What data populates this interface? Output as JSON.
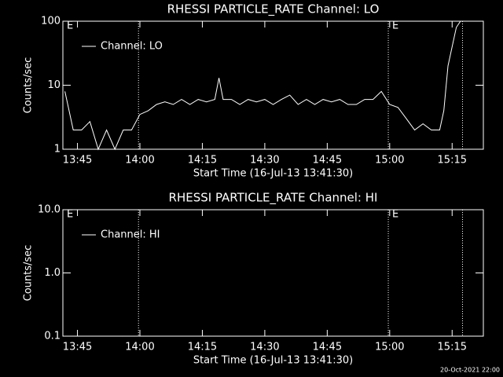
{
  "chart_data": [
    {
      "type": "line",
      "title": "RHESSI PARTICLE_RATE Channel: LO",
      "ylabel": "Counts/sec",
      "xlabel": "Start Time (16-Jul-13 13:41:30)",
      "log_y": true,
      "grid": false,
      "legend": "upper left",
      "xlim": [
        "13:41:30",
        "15:22:30"
      ],
      "xticks": [
        "13:45",
        "14:00",
        "14:15",
        "14:30",
        "14:45",
        "15:00",
        "15:15"
      ],
      "ylim": [
        1,
        100
      ],
      "yticks": [
        1,
        10,
        100
      ],
      "vlines": [
        "13:59:40",
        "14:59:40",
        "15:17:30"
      ],
      "annotations": [
        "E",
        "E"
      ],
      "series": [
        {
          "name": "Channel: LO",
          "color": "#ffffff",
          "x": [
            "13:42",
            "13:43",
            "13:44",
            "13:46",
            "13:48",
            "13:50",
            "13:52",
            "13:54",
            "13:56",
            "13:58",
            "14:00",
            "14:02",
            "14:04",
            "14:06",
            "14:08",
            "14:10",
            "14:12",
            "14:14",
            "14:16",
            "14:18",
            "14:19",
            "14:20",
            "14:22",
            "14:24",
            "14:26",
            "14:28",
            "14:30",
            "14:32",
            "14:34",
            "14:36",
            "14:38",
            "14:40",
            "14:42",
            "14:44",
            "14:46",
            "14:48",
            "14:50",
            "14:52",
            "14:54",
            "14:56",
            "14:58",
            "15:00",
            "15:02",
            "15:04",
            "15:06",
            "15:08",
            "15:10",
            "15:12",
            "15:13",
            "15:14",
            "15:15",
            "15:16",
            "15:17"
          ],
          "values": [
            8,
            4,
            2,
            2,
            2.7,
            1,
            2,
            1,
            2,
            2,
            3.5,
            4,
            5,
            5.5,
            5,
            6,
            5,
            6,
            5.5,
            6,
            13,
            6,
            6,
            5,
            6,
            5.5,
            6,
            5,
            6,
            7,
            5,
            6,
            5,
            6,
            5.5,
            6,
            5,
            5,
            6,
            6,
            8,
            5,
            4.5,
            3,
            2,
            2.5,
            2,
            2,
            4,
            20,
            40,
            80,
            100
          ]
        }
      ]
    },
    {
      "type": "line",
      "title": "RHESSI PARTICLE_RATE Channel: HI",
      "ylabel": "Counts/sec",
      "xlabel": "Start Time (16-Jul-13 13:41:30)",
      "log_y": true,
      "grid": false,
      "legend": "upper left",
      "xlim": [
        "13:41:30",
        "15:22:30"
      ],
      "xticks": [
        "13:45",
        "14:00",
        "14:15",
        "14:30",
        "14:45",
        "15:00",
        "15:15"
      ],
      "ylim": [
        0.1,
        10
      ],
      "yticks": [
        0.1,
        {
          "value": 1,
          "label": "1.0"
        },
        {
          "value": 10,
          "label": "10.0"
        }
      ],
      "vlines": [
        "13:59:40",
        "14:59:40",
        "15:17:30"
      ],
      "annotations": [
        "E",
        "E"
      ],
      "series": [
        {
          "name": "Channel: HI",
          "color": "#ffffff",
          "x": [],
          "values": []
        }
      ]
    }
  ],
  "footer": "20-Oct-2021 22:00"
}
